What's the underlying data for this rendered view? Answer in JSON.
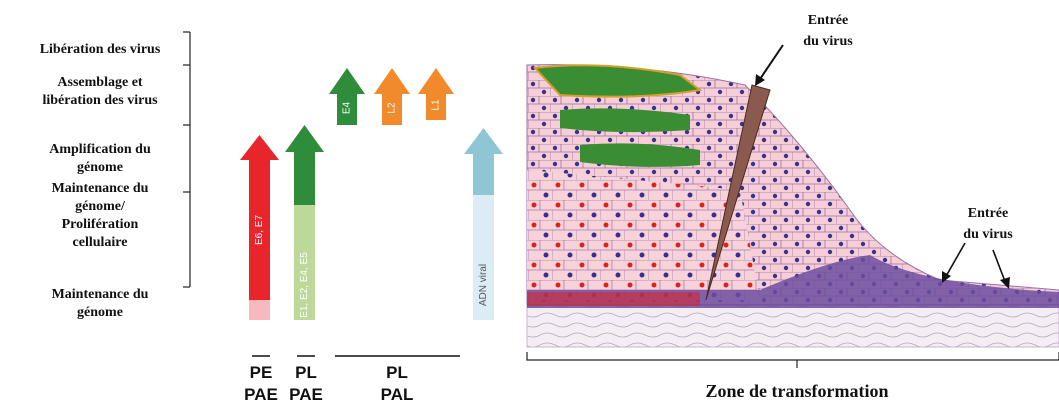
{
  "stages": [
    {
      "lines": [
        "Libération des virus"
      ]
    },
    {
      "lines": [
        "Assemblage et",
        "libération des virus"
      ]
    },
    {
      "lines": [
        "Amplification du",
        "génome"
      ]
    },
    {
      "lines": [
        "Maintenance du",
        "génome/",
        "Prolifération",
        "cellulaire"
      ]
    },
    {
      "lines": [
        "Maintenance du",
        "génome"
      ]
    }
  ],
  "arrows": [
    "E6, E7",
    "E1, E2, E4, E5",
    "E4",
    "L2",
    "L1",
    "ADN viral"
  ],
  "phases": [
    {
      "lines": [
        "PE",
        "PAE"
      ]
    },
    {
      "lines": [
        "PL",
        "PAE"
      ]
    },
    {
      "lines": [
        "PL",
        "PAL"
      ]
    }
  ],
  "tissue": {
    "entry_top": [
      "Entrée",
      "du virus"
    ],
    "entry_bottom": [
      "Entrée",
      "du virus"
    ],
    "zone": "Zone de transformation"
  }
}
